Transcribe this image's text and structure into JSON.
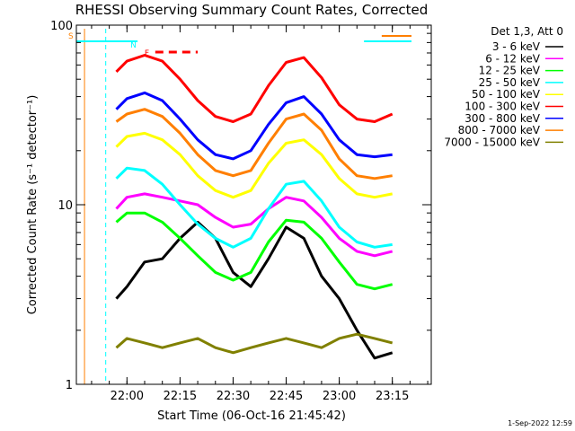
{
  "chart_data": {
    "type": "line",
    "title": "RHESSI Observing Summary Count Rates, Corrected",
    "xlabel": "Start Time (06-Oct-16 21:45:42)",
    "ylabel": "Corrected Count Rate (s⁻¹ detector⁻¹)",
    "yscale": "log",
    "ylim": [
      1,
      100
    ],
    "xlim": [
      "21:45:42",
      "23:26:00"
    ],
    "x_ticks": [
      "22:00",
      "22:15",
      "22:30",
      "22:45",
      "23:00",
      "23:15"
    ],
    "y_ticks": [
      "1",
      "10",
      "100"
    ],
    "legend_title": "Det 1,3, Att 0",
    "legend_position": "right",
    "timestamp": "1-Sep-2022 12:59",
    "flag_markers": {
      "s": "S",
      "n": "N",
      "f": "F",
      "s_color": "#ff7f00",
      "n_color": "#00ffff",
      "f_color": "#ff0000"
    },
    "time_samples": [
      "21:57",
      "22:00",
      "22:05",
      "22:10",
      "22:15",
      "22:20",
      "22:25",
      "22:30",
      "22:35",
      "22:40",
      "22:45",
      "22:50",
      "22:55",
      "23:00",
      "23:05",
      "23:10",
      "23:15"
    ],
    "series": [
      {
        "name": "3 - 6 keV",
        "color": "#000000",
        "values": [
          3.0,
          3.5,
          4.8,
          5.0,
          6.5,
          8.0,
          6.5,
          4.2,
          3.5,
          5.0,
          7.5,
          6.5,
          4.0,
          3.0,
          2.0,
          1.4,
          1.5
        ]
      },
      {
        "name": "6 - 12 keV",
        "color": "#ff00ff",
        "values": [
          9.5,
          11.0,
          11.5,
          11.0,
          10.5,
          10.0,
          8.5,
          7.5,
          7.8,
          9.5,
          11.0,
          10.5,
          8.5,
          6.5,
          5.5,
          5.2,
          5.5
        ]
      },
      {
        "name": "12 - 25 keV",
        "color": "#00ff00",
        "values": [
          8.0,
          9.0,
          9.0,
          8.0,
          6.5,
          5.2,
          4.2,
          3.8,
          4.2,
          6.2,
          8.2,
          8.0,
          6.5,
          4.8,
          3.6,
          3.4,
          3.6
        ]
      },
      {
        "name": "25 - 50 keV",
        "color": "#00ffff",
        "values": [
          14.0,
          16.0,
          15.5,
          13.0,
          10.0,
          7.8,
          6.5,
          5.8,
          6.5,
          9.5,
          13.0,
          13.5,
          10.5,
          7.5,
          6.2,
          5.8,
          6.0
        ]
      },
      {
        "name": "50 - 100 keV",
        "color": "#ffff00",
        "values": [
          21.0,
          24.0,
          25.0,
          23.0,
          19.0,
          14.5,
          12.0,
          11.0,
          12.0,
          17.0,
          22.0,
          23.0,
          19.0,
          14.0,
          11.5,
          11.0,
          11.5
        ]
      },
      {
        "name": "100 - 300 keV",
        "color": "#ff0000",
        "values": [
          55.0,
          63.0,
          68.0,
          63.0,
          50.0,
          38.0,
          31.0,
          29.0,
          32.0,
          46.0,
          62.0,
          66.0,
          51.0,
          36.0,
          30.0,
          29.0,
          32.0
        ]
      },
      {
        "name": "300 - 800 keV",
        "color": "#0000ff",
        "values": [
          34.0,
          39.0,
          42.0,
          38.0,
          30.0,
          23.0,
          19.0,
          18.0,
          20.0,
          28.0,
          37.0,
          40.0,
          32.0,
          23.0,
          19.0,
          18.5,
          19.0
        ]
      },
      {
        "name": "800 - 7000 keV",
        "color": "#ff7f00",
        "values": [
          29.0,
          32.0,
          34.0,
          31.0,
          25.0,
          19.0,
          15.5,
          14.5,
          15.5,
          22.0,
          30.0,
          32.0,
          26.0,
          18.0,
          14.5,
          14.0,
          14.5
        ]
      },
      {
        "name": "7000 - 15000 keV",
        "color": "#808000",
        "values": [
          1.6,
          1.8,
          1.7,
          1.6,
          1.7,
          1.8,
          1.6,
          1.5,
          1.6,
          1.7,
          1.8,
          1.7,
          1.6,
          1.8,
          1.9,
          1.8,
          1.7
        ]
      }
    ]
  }
}
